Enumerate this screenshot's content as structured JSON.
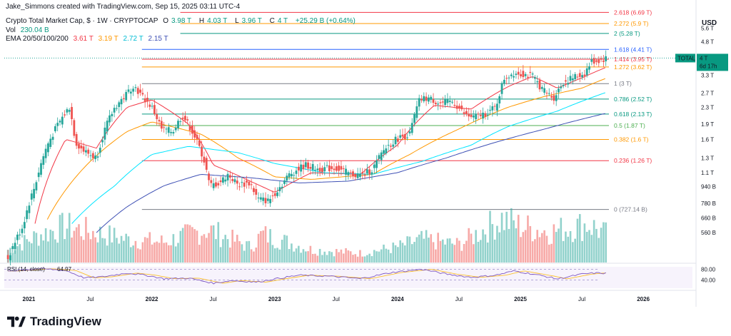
{
  "attribution": "Jake_Simmons created with TradingView.com, Sep 15, 2025 03:11 UTC-4",
  "legend": {
    "symbol": "Crypto Total Market Cap, $ · 1W · CRYPTOCAP",
    "ohlc": [
      {
        "k": "O",
        "v": "3.98 T"
      },
      {
        "k": "H",
        "v": "4.03 T"
      },
      {
        "k": "L",
        "v": "3.96 T"
      },
      {
        "k": "C",
        "v": "4 T"
      }
    ],
    "change": "+25.29 B (+0.64%)",
    "vol_label": "Vol",
    "vol_value": "230.04 B",
    "ema_label": "EMA 20/50/100/200",
    "ema_values": [
      "3.61 T",
      "3.19 T",
      "2.72 T",
      "2.15 T"
    ]
  },
  "colors": {
    "up": "#26a69a",
    "down": "#ef5350",
    "ema20": "#f23645",
    "ema50": "#ff9800",
    "ema100": "#00e5ff",
    "ema200": "#3f51b5",
    "rsi": "#7e57c2",
    "rsi_ma": "#fbc02d"
  },
  "currency_label": "USD",
  "brand": "TradingView",
  "chart_data": {
    "type": "candlestick",
    "title": "Crypto Total Market Cap, $ · 1W · CRYPTOCAP",
    "y_scale": "log",
    "price_axis_ticks": [
      "5.6 T",
      "4.8 T",
      "3.3 T",
      "2.7 T",
      "2.3 T",
      "1.9 T",
      "1.6 T",
      "1.3 T",
      "1.1 T",
      "940 B",
      "780 B",
      "660 B",
      "560 B"
    ],
    "price_axis_values": [
      5.6,
      4.8,
      3.3,
      2.7,
      2.3,
      1.9,
      1.6,
      1.3,
      1.1,
      0.94,
      0.78,
      0.66,
      0.56
    ],
    "x_ticks": [
      "2021",
      "Jul",
      "2022",
      "Jul",
      "2023",
      "Jul",
      "2024",
      "Jul",
      "2025",
      "Jul",
      "2026"
    ],
    "x_tick_dates": [
      2021.0,
      2021.5,
      2022.0,
      2022.5,
      2023.0,
      2023.5,
      2024.0,
      2024.5,
      2025.0,
      2025.5,
      2026.0
    ],
    "last_price": {
      "symbol": "TOTAL",
      "value": "4 T",
      "countdown": "6d 17h"
    },
    "fib_levels": [
      {
        "label": "2.618 (6.69 T)",
        "value": 6.69,
        "color": "#f23645"
      },
      {
        "label": "2.272 (5.9 T)",
        "value": 5.9,
        "color": "#ff9800"
      },
      {
        "label": "2 (5.28 T)",
        "value": 5.28,
        "color": "#089981"
      },
      {
        "label": "1.618 (4.41 T)",
        "value": 4.41,
        "color": "#2962ff"
      },
      {
        "label": "1.414 (3.95 T)",
        "value": 3.95,
        "color": "#f23645"
      },
      {
        "label": "1.272 (3.62 T)",
        "value": 3.62,
        "color": "#ff9800"
      },
      {
        "label": "1 (3 T)",
        "value": 3.0,
        "color": "#787b86"
      },
      {
        "label": "0.786 (2.52 T)",
        "value": 2.52,
        "color": "#089981"
      },
      {
        "label": "0.618 (2.13 T)",
        "value": 2.13,
        "color": "#089981"
      },
      {
        "label": "0.5 (1.87 T)",
        "value": 1.87,
        "color": "#4caf50"
      },
      {
        "label": "0.382 (1.6 T)",
        "value": 1.6,
        "color": "#ff9800"
      },
      {
        "label": "0.236 (1.26 T)",
        "value": 1.26,
        "color": "#f23645"
      },
      {
        "label": "0 (727.14 B)",
        "value": 0.72714,
        "color": "#787b86"
      }
    ],
    "price_series_keypoints": [
      {
        "t": 2020.83,
        "v": 0.42
      },
      {
        "t": 2020.95,
        "v": 0.6
      },
      {
        "t": 2021.05,
        "v": 0.95
      },
      {
        "t": 2021.15,
        "v": 1.5
      },
      {
        "t": 2021.25,
        "v": 1.95
      },
      {
        "t": 2021.33,
        "v": 2.3
      },
      {
        "t": 2021.38,
        "v": 1.55
      },
      {
        "t": 2021.45,
        "v": 1.4
      },
      {
        "t": 2021.55,
        "v": 1.3
      },
      {
        "t": 2021.62,
        "v": 1.8
      },
      {
        "t": 2021.7,
        "v": 2.3
      },
      {
        "t": 2021.78,
        "v": 2.6
      },
      {
        "t": 2021.85,
        "v": 2.95
      },
      {
        "t": 2021.92,
        "v": 2.6
      },
      {
        "t": 2022.0,
        "v": 2.3
      },
      {
        "t": 2022.08,
        "v": 1.8
      },
      {
        "t": 2022.17,
        "v": 1.75
      },
      {
        "t": 2022.25,
        "v": 2.1
      },
      {
        "t": 2022.33,
        "v": 1.75
      },
      {
        "t": 2022.42,
        "v": 1.3
      },
      {
        "t": 2022.47,
        "v": 0.95
      },
      {
        "t": 2022.55,
        "v": 0.98
      },
      {
        "t": 2022.62,
        "v": 1.08
      },
      {
        "t": 2022.7,
        "v": 0.96
      },
      {
        "t": 2022.8,
        "v": 0.98
      },
      {
        "t": 2022.86,
        "v": 0.82
      },
      {
        "t": 2022.95,
        "v": 0.8
      },
      {
        "t": 2023.05,
        "v": 0.95
      },
      {
        "t": 2023.12,
        "v": 1.08
      },
      {
        "t": 2023.25,
        "v": 1.2
      },
      {
        "t": 2023.35,
        "v": 1.15
      },
      {
        "t": 2023.5,
        "v": 1.16
      },
      {
        "t": 2023.62,
        "v": 1.08
      },
      {
        "t": 2023.72,
        "v": 1.07
      },
      {
        "t": 2023.8,
        "v": 1.15
      },
      {
        "t": 2023.9,
        "v": 1.45
      },
      {
        "t": 2024.0,
        "v": 1.62
      },
      {
        "t": 2024.1,
        "v": 1.7
      },
      {
        "t": 2024.18,
        "v": 2.5
      },
      {
        "t": 2024.25,
        "v": 2.55
      },
      {
        "t": 2024.35,
        "v": 2.4
      },
      {
        "t": 2024.45,
        "v": 2.45
      },
      {
        "t": 2024.55,
        "v": 2.1
      },
      {
        "t": 2024.62,
        "v": 2.05
      },
      {
        "t": 2024.72,
        "v": 2.15
      },
      {
        "t": 2024.8,
        "v": 2.3
      },
      {
        "t": 2024.87,
        "v": 3.2
      },
      {
        "t": 2024.95,
        "v": 3.4
      },
      {
        "t": 2025.02,
        "v": 3.35
      },
      {
        "t": 2025.1,
        "v": 3.25
      },
      {
        "t": 2025.18,
        "v": 2.8
      },
      {
        "t": 2025.27,
        "v": 2.55
      },
      {
        "t": 2025.35,
        "v": 3.05
      },
      {
        "t": 2025.45,
        "v": 3.25
      },
      {
        "t": 2025.52,
        "v": 3.35
      },
      {
        "t": 2025.58,
        "v": 3.85
      },
      {
        "t": 2025.65,
        "v": 3.9
      },
      {
        "t": 2025.7,
        "v": 4.0
      }
    ],
    "ema_series_keypoints": {
      "ema20": [
        {
          "t": 2021.05,
          "v": 0.62
        },
        {
          "t": 2021.3,
          "v": 1.6
        },
        {
          "t": 2021.55,
          "v": 1.45
        },
        {
          "t": 2021.8,
          "v": 2.3
        },
        {
          "t": 2022.0,
          "v": 2.5
        },
        {
          "t": 2022.3,
          "v": 1.9
        },
        {
          "t": 2022.5,
          "v": 1.2
        },
        {
          "t": 2022.8,
          "v": 1.0
        },
        {
          "t": 2023.0,
          "v": 0.88
        },
        {
          "t": 2023.3,
          "v": 1.1
        },
        {
          "t": 2023.7,
          "v": 1.08
        },
        {
          "t": 2024.0,
          "v": 1.5
        },
        {
          "t": 2024.3,
          "v": 2.35
        },
        {
          "t": 2024.6,
          "v": 2.25
        },
        {
          "t": 2024.9,
          "v": 2.9
        },
        {
          "t": 2025.1,
          "v": 3.25
        },
        {
          "t": 2025.3,
          "v": 2.85
        },
        {
          "t": 2025.5,
          "v": 3.2
        },
        {
          "t": 2025.7,
          "v": 3.61
        }
      ],
      "ema50": [
        {
          "t": 2021.15,
          "v": 0.65
        },
        {
          "t": 2021.5,
          "v": 1.25
        },
        {
          "t": 2021.8,
          "v": 1.75
        },
        {
          "t": 2022.0,
          "v": 1.95
        },
        {
          "t": 2022.4,
          "v": 1.7
        },
        {
          "t": 2022.7,
          "v": 1.3
        },
        {
          "t": 2023.0,
          "v": 1.05
        },
        {
          "t": 2023.3,
          "v": 1.02
        },
        {
          "t": 2023.8,
          "v": 1.08
        },
        {
          "t": 2024.1,
          "v": 1.35
        },
        {
          "t": 2024.5,
          "v": 1.8
        },
        {
          "t": 2024.9,
          "v": 2.3
        },
        {
          "t": 2025.2,
          "v": 2.6
        },
        {
          "t": 2025.5,
          "v": 2.85
        },
        {
          "t": 2025.7,
          "v": 3.19
        }
      ],
      "ema100": [
        {
          "t": 2021.35,
          "v": 0.62
        },
        {
          "t": 2021.7,
          "v": 0.95
        },
        {
          "t": 2022.0,
          "v": 1.35
        },
        {
          "t": 2022.3,
          "v": 1.48
        },
        {
          "t": 2022.7,
          "v": 1.38
        },
        {
          "t": 2023.0,
          "v": 1.22
        },
        {
          "t": 2023.4,
          "v": 1.1
        },
        {
          "t": 2023.8,
          "v": 1.08
        },
        {
          "t": 2024.2,
          "v": 1.25
        },
        {
          "t": 2024.6,
          "v": 1.5
        },
        {
          "t": 2024.9,
          "v": 1.85
        },
        {
          "t": 2025.3,
          "v": 2.2
        },
        {
          "t": 2025.7,
          "v": 2.72
        }
      ],
      "ema200": [
        {
          "t": 2021.55,
          "v": 0.56
        },
        {
          "t": 2021.8,
          "v": 0.75
        },
        {
          "t": 2022.1,
          "v": 0.95
        },
        {
          "t": 2022.4,
          "v": 1.08
        },
        {
          "t": 2022.8,
          "v": 1.04
        },
        {
          "t": 2023.2,
          "v": 0.98
        },
        {
          "t": 2023.6,
          "v": 1.0
        },
        {
          "t": 2024.0,
          "v": 1.1
        },
        {
          "t": 2024.4,
          "v": 1.3
        },
        {
          "t": 2024.8,
          "v": 1.55
        },
        {
          "t": 2025.2,
          "v": 1.8
        },
        {
          "t": 2025.7,
          "v": 2.15
        }
      ]
    },
    "rsi": {
      "label": "RSI (14, close)",
      "value": "64.97",
      "ticks": [
        "80.00",
        "40.00"
      ],
      "tick_values": [
        80,
        40
      ],
      "keypoints": [
        {
          "t": 2020.83,
          "v": 74
        },
        {
          "t": 2021.1,
          "v": 82
        },
        {
          "t": 2021.3,
          "v": 76
        },
        {
          "t": 2021.45,
          "v": 48
        },
        {
          "t": 2021.6,
          "v": 52
        },
        {
          "t": 2021.8,
          "v": 66
        },
        {
          "t": 2021.95,
          "v": 58
        },
        {
          "t": 2022.1,
          "v": 45
        },
        {
          "t": 2022.3,
          "v": 47
        },
        {
          "t": 2022.5,
          "v": 28
        },
        {
          "t": 2022.65,
          "v": 38
        },
        {
          "t": 2022.85,
          "v": 32
        },
        {
          "t": 2023.0,
          "v": 44
        },
        {
          "t": 2023.2,
          "v": 58
        },
        {
          "t": 2023.45,
          "v": 54
        },
        {
          "t": 2023.7,
          "v": 45
        },
        {
          "t": 2023.95,
          "v": 68
        },
        {
          "t": 2024.2,
          "v": 80
        },
        {
          "t": 2024.4,
          "v": 62
        },
        {
          "t": 2024.6,
          "v": 50
        },
        {
          "t": 2024.8,
          "v": 58
        },
        {
          "t": 2024.95,
          "v": 74
        },
        {
          "t": 2025.2,
          "v": 54
        },
        {
          "t": 2025.3,
          "v": 44
        },
        {
          "t": 2025.5,
          "v": 62
        },
        {
          "t": 2025.6,
          "v": 66
        },
        {
          "t": 2025.7,
          "v": 65
        }
      ]
    },
    "volume_keypoints": [
      {
        "t": 2020.83,
        "v": 0.25
      },
      {
        "t": 2021.1,
        "v": 0.55
      },
      {
        "t": 2021.3,
        "v": 0.7
      },
      {
        "t": 2021.5,
        "v": 0.6
      },
      {
        "t": 2021.8,
        "v": 0.45
      },
      {
        "t": 2022.1,
        "v": 0.4
      },
      {
        "t": 2022.45,
        "v": 0.65
      },
      {
        "t": 2022.8,
        "v": 0.3
      },
      {
        "t": 2022.9,
        "v": 0.55
      },
      {
        "t": 2023.3,
        "v": 0.25
      },
      {
        "t": 2023.7,
        "v": 0.18
      },
      {
        "t": 2024.0,
        "v": 0.3
      },
      {
        "t": 2024.2,
        "v": 0.45
      },
      {
        "t": 2024.5,
        "v": 0.35
      },
      {
        "t": 2024.85,
        "v": 0.85
      },
      {
        "t": 2025.0,
        "v": 0.7
      },
      {
        "t": 2025.25,
        "v": 0.6
      },
      {
        "t": 2025.55,
        "v": 0.75
      },
      {
        "t": 2025.7,
        "v": 0.55
      }
    ]
  }
}
